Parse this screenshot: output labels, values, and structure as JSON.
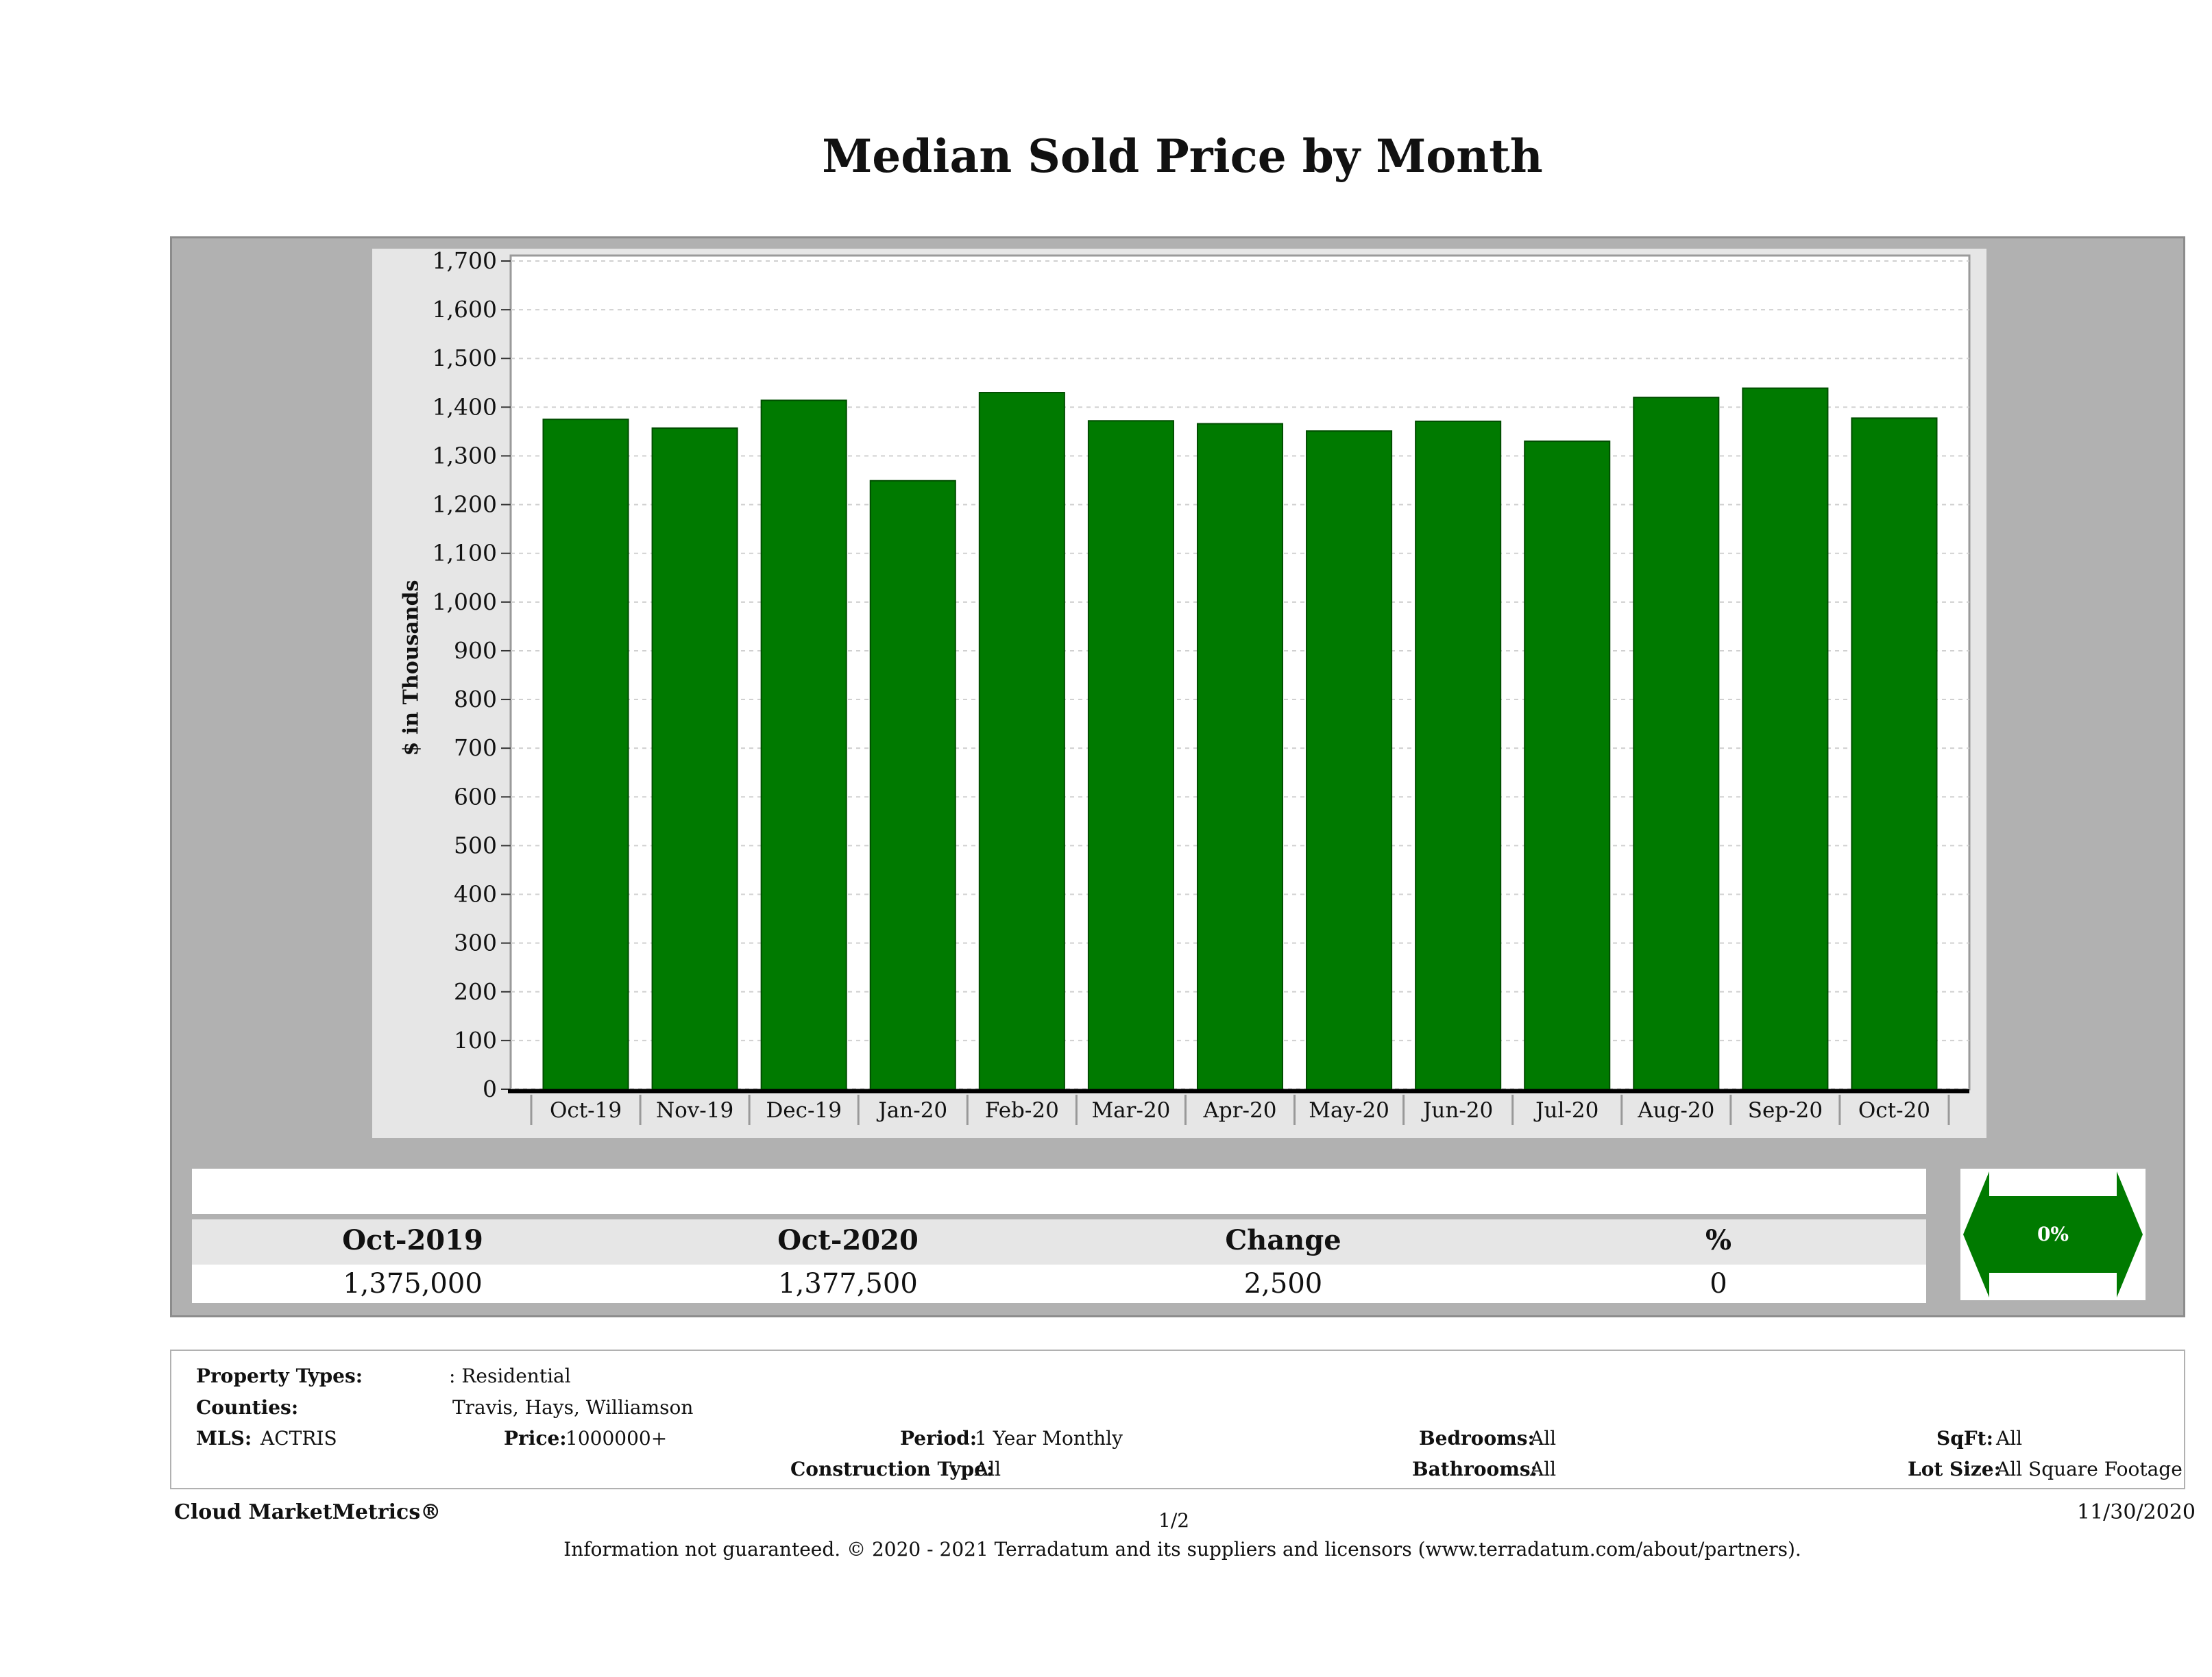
{
  "page_title": "Median Sold Price by Month",
  "chart_data": {
    "type": "bar",
    "title": "Median Sold Price by Month",
    "xlabel": "",
    "ylabel": "$ in Thousands",
    "categories": [
      "Oct-19",
      "Nov-19",
      "Dec-19",
      "Jan-20",
      "Feb-20",
      "Mar-20",
      "Apr-20",
      "May-20",
      "Jun-20",
      "Jul-20",
      "Aug-20",
      "Sep-20",
      "Oct-20"
    ],
    "values": [
      1375,
      1357,
      1414,
      1249,
      1430,
      1372,
      1366,
      1351,
      1371,
      1330,
      1420,
      1439,
      1377.5
    ],
    "ylim": [
      0,
      1700
    ],
    "yticks": [
      0,
      100,
      200,
      300,
      400,
      500,
      600,
      700,
      800,
      900,
      1000,
      1100,
      1200,
      1300,
      1400,
      1500,
      1600,
      1700
    ],
    "ytick_labels": [
      "0",
      "100",
      "200",
      "300",
      "400",
      "500",
      "600",
      "700",
      "800",
      "900",
      "1,000",
      "1,100",
      "1,200",
      "1,300",
      "1,400",
      "1,500",
      "1,600",
      "1,700"
    ],
    "bar_color": "#007a00",
    "grid": true,
    "legend": "none"
  },
  "summary": {
    "headers": [
      "Oct-2019",
      "Oct-2020",
      "Change",
      "%"
    ],
    "values": [
      "1,375,000",
      "1,377,500",
      "2,500",
      "0"
    ],
    "indicator": "0%",
    "indicator_color": "#007a00"
  },
  "filters": {
    "property_types_label": "Property Types:",
    "property_types_value": ": Residential",
    "counties_label": "Counties:",
    "counties_value": "Travis, Hays, Williamson",
    "mls_label": "MLS:",
    "mls_value": "ACTRIS",
    "price_label": "Price:",
    "price_value": "1000000+",
    "period_label": "Period:",
    "period_value": "1 Year Monthly",
    "construction_label": "Construction Type:",
    "construction_value": "All",
    "bedrooms_label": "Bedrooms:",
    "bedrooms_value": "All",
    "bathrooms_label": "Bathrooms:",
    "bathrooms_value": "All",
    "sqft_label": "SqFt:",
    "sqft_value": "All",
    "lot_label": "Lot Size:",
    "lot_value": "All Square Footage"
  },
  "footer": {
    "brand": "Cloud MarketMetrics®",
    "page": "1/2",
    "date": "11/30/2020",
    "note": "Information not guaranteed. © 2020 - 2021 Terradatum and its suppliers and licensors (www.terradatum.com/about/partners)."
  }
}
